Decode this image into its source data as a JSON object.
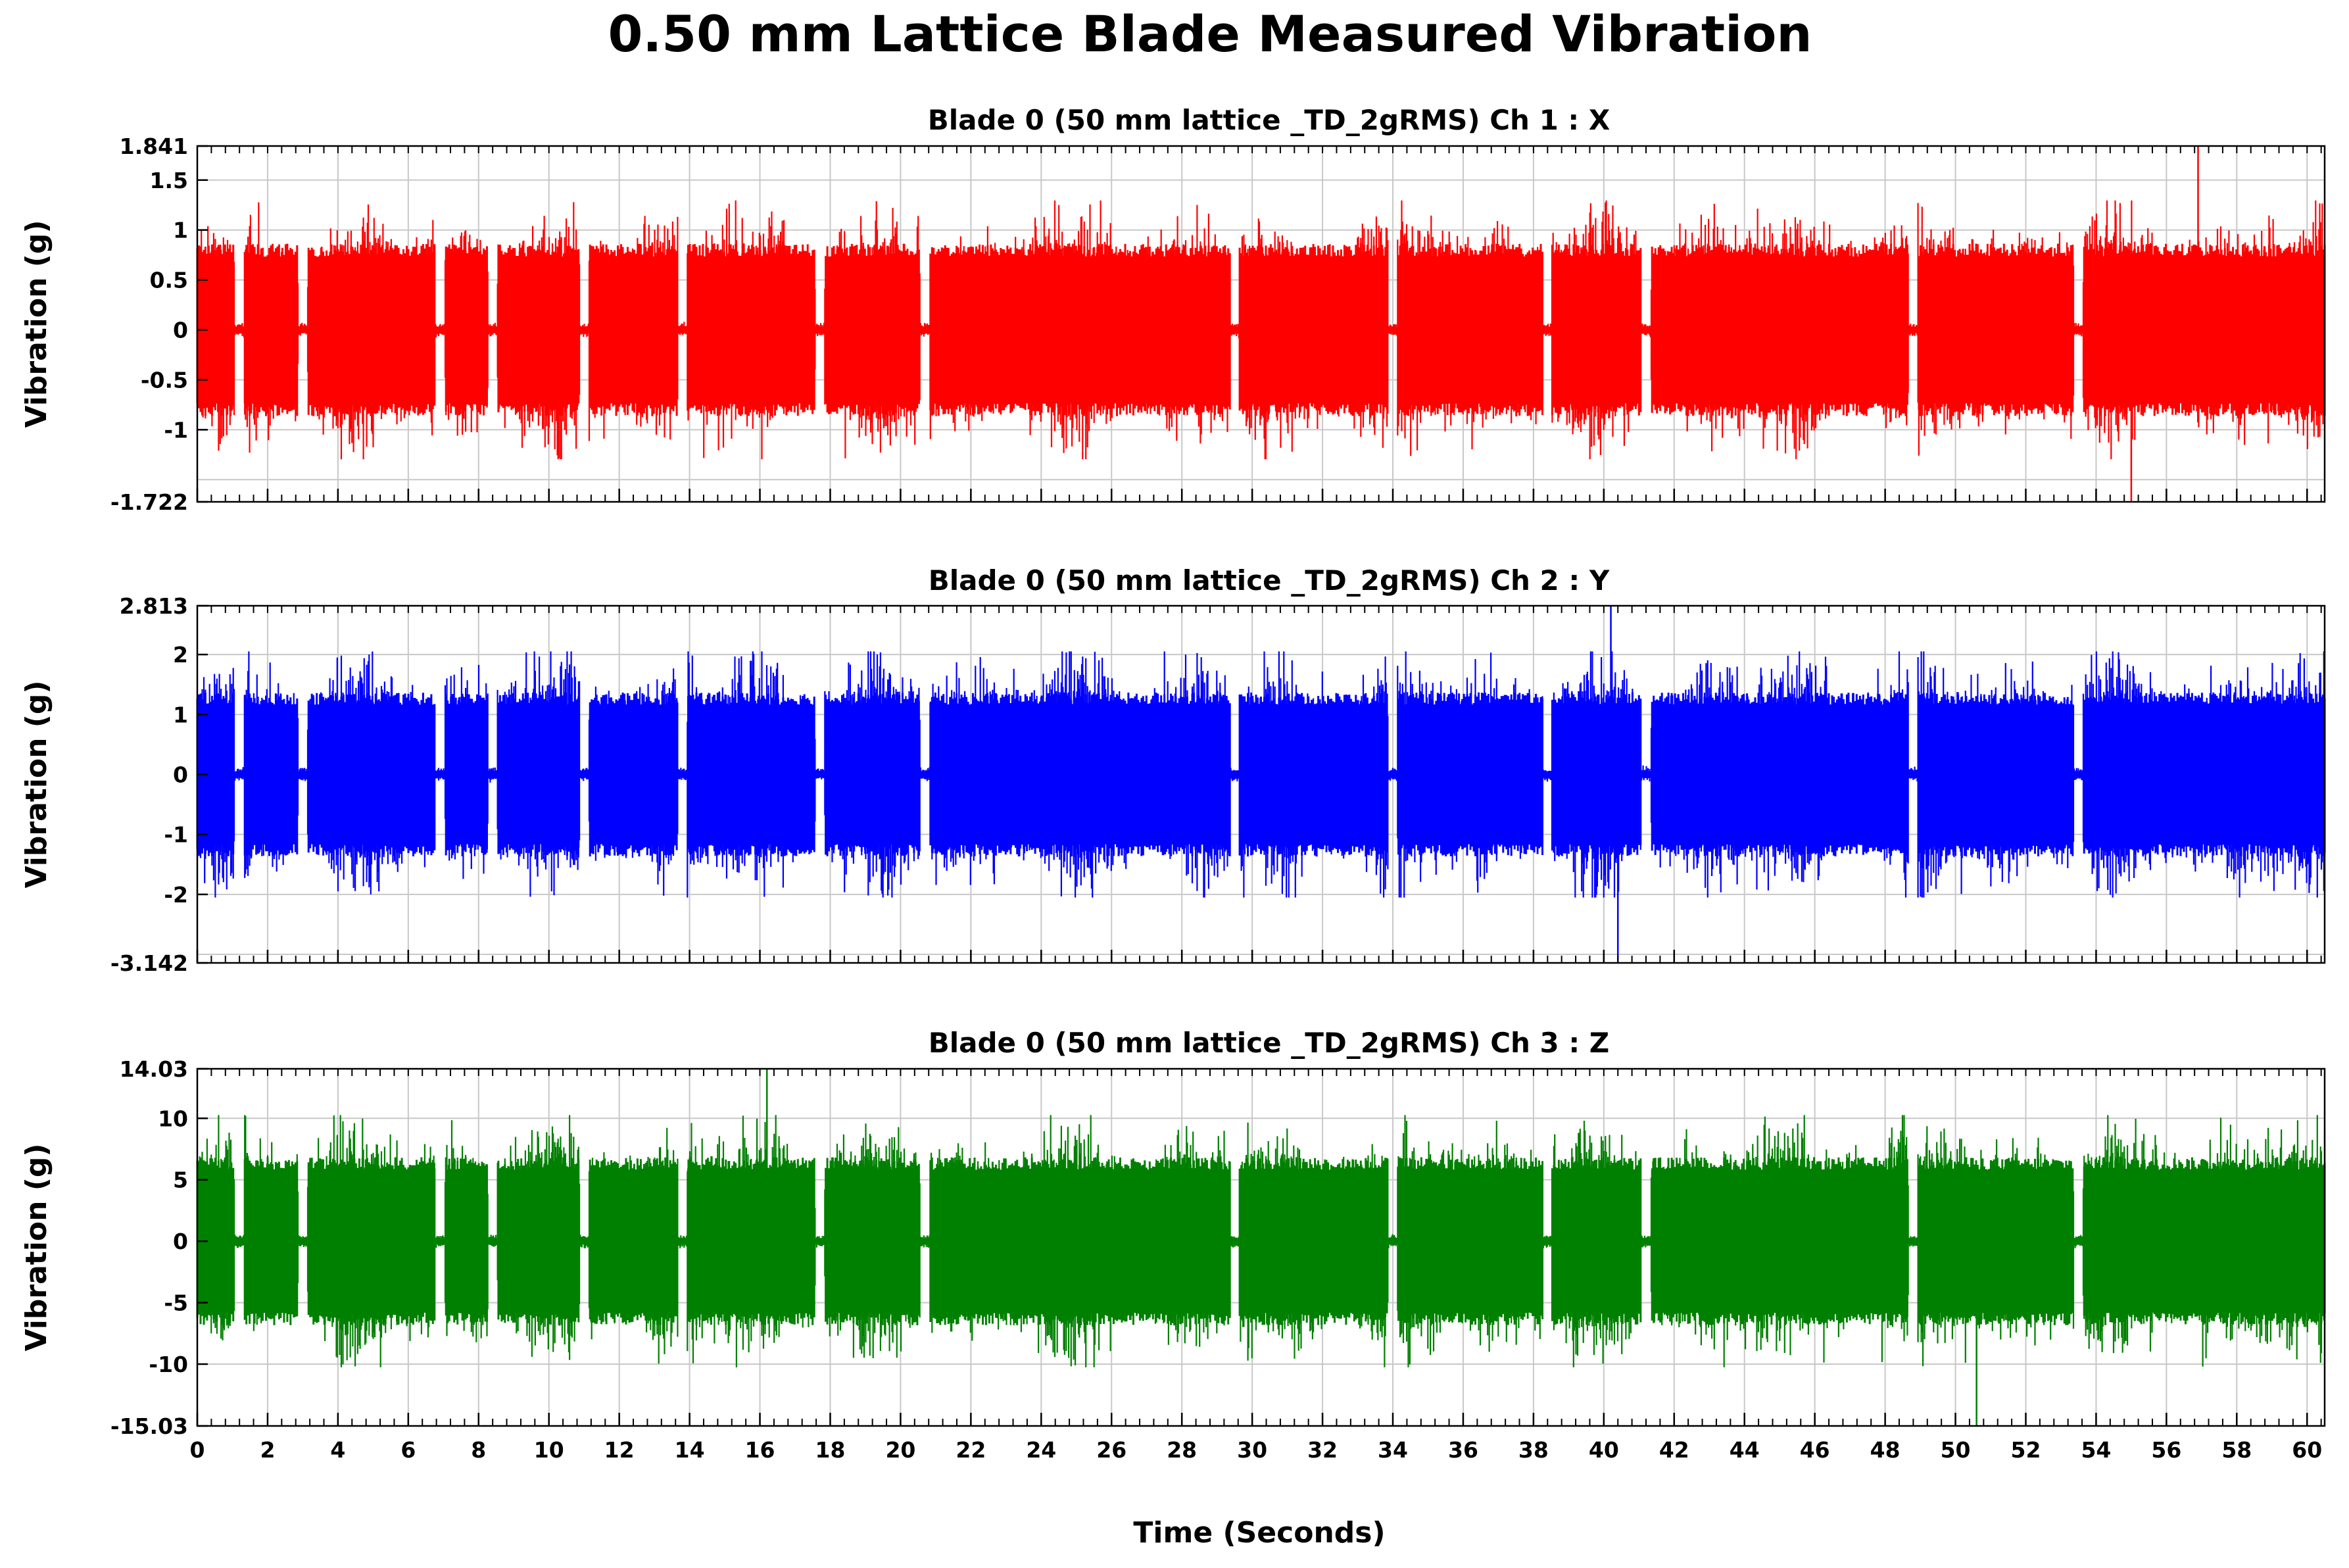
{
  "title": "0.50 mm Lattice Blade Measured Vibration",
  "xlabel": "Time (Seconds)",
  "chart_data": {
    "type": "line",
    "title": "0.50 mm Lattice Blade Measured Vibration",
    "xlabel": "Time (Seconds)",
    "xlim": [
      0,
      60.5
    ],
    "xticks": [
      0,
      2,
      4,
      6,
      8,
      10,
      12,
      14,
      16,
      18,
      20,
      22,
      24,
      26,
      28,
      30,
      32,
      34,
      36,
      38,
      40,
      42,
      44,
      46,
      48,
      50,
      52,
      54,
      56,
      58,
      60
    ],
    "xtick_labels": [
      "0",
      "2",
      "4",
      "6",
      "8",
      "10",
      "12",
      "14",
      "16",
      "18",
      "20",
      "22",
      "24",
      "26",
      "28",
      "30",
      "32",
      "34",
      "36",
      "38",
      "40",
      "42",
      "44",
      "46",
      "48",
      "50",
      "52",
      "54",
      "56",
      "58",
      "60"
    ],
    "grid": true,
    "gap_times": [
      1.2,
      3.0,
      6.9,
      8.4,
      11.0,
      13.8,
      17.7,
      20.7,
      29.5,
      34.0,
      38.4,
      41.2,
      48.8,
      53.5
    ],
    "panels": [
      {
        "title": "Blade 0 (50 mm lattice _TD_2gRMS)  Ch 1 : X",
        "ylabel": "Vibration (g)",
        "color": "#ff0000",
        "ylim": [
          -1.722,
          1.841
        ],
        "yticks": [
          -1.722,
          -1,
          -0.5,
          0,
          0.5,
          1,
          1.5,
          1.841
        ],
        "ytick_labels": [
          "-1.722",
          "-1",
          "-0.5",
          "0",
          "0.5",
          "1",
          "1.5",
          "1.841"
        ],
        "grid_values": [
          -1.5,
          -1,
          -0.5,
          0,
          0.5,
          1,
          1.5
        ],
        "rms": 0.45,
        "peak_max": 1.841,
        "peak_min": -1.722,
        "peak_max_time": 56.9,
        "peak_min_time": 55.0,
        "typical_envelope": [
          -1.2,
          1.2
        ]
      },
      {
        "title": "Blade 0 (50 mm lattice _TD_2gRMS)  Ch 2 : Y",
        "ylabel": "Vibration (g)",
        "color": "#0000ff",
        "ylim": [
          -3.142,
          2.813
        ],
        "yticks": [
          -3.142,
          -2,
          -1,
          0,
          1,
          2,
          2.813
        ],
        "ytick_labels": [
          "-3.142",
          "-2",
          "-1",
          "0",
          "1",
          "2",
          "2.813"
        ],
        "grid_values": [
          -3,
          -2,
          -1,
          0,
          1,
          2
        ],
        "rms": 0.75,
        "peak_max": 2.813,
        "peak_min": -3.142,
        "peak_max_time": 40.2,
        "peak_min_time": 40.4,
        "typical_envelope": [
          -1.9,
          1.9
        ]
      },
      {
        "title": "Blade 0 (50 mm lattice _TD_2gRMS)  Ch 3 : Z",
        "ylabel": "Vibration (g)",
        "color": "#008000",
        "ylim": [
          -15.03,
          14.03
        ],
        "yticks": [
          -15.03,
          -10,
          -5,
          0,
          5,
          10,
          14.03
        ],
        "ytick_labels": [
          "-15.03",
          "-10",
          "-5",
          "0",
          "5",
          "10",
          "14.03"
        ],
        "grid_values": [
          -10,
          -5,
          0,
          5,
          10
        ],
        "rms": 3.6,
        "peak_max": 14.03,
        "peak_min": -15.03,
        "peak_max_time": 16.2,
        "peak_min_time": 50.6,
        "typical_envelope": [
          -9.5,
          9.5
        ]
      }
    ]
  }
}
